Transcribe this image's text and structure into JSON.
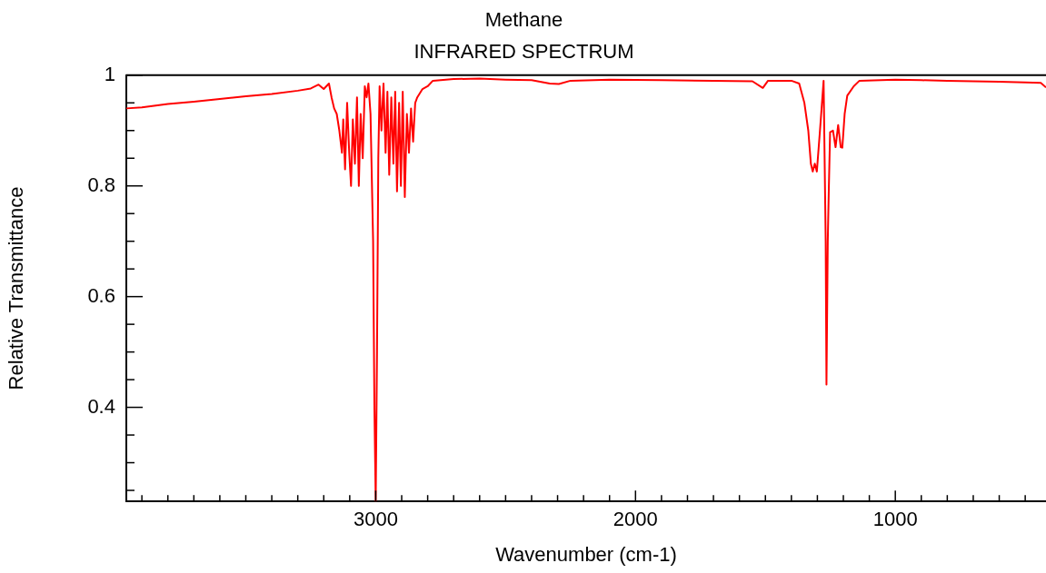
{
  "chart_data": {
    "type": "line",
    "title": "Methane",
    "subtitle": "INFRARED SPECTRUM",
    "xlabel": "Wavenumber (cm-1)",
    "ylabel": "Relative Transmittance",
    "xlim": [
      3960,
      420
    ],
    "ylim": [
      0.23,
      1
    ],
    "xticks": [
      {
        "value": 3900,
        "label": null
      },
      {
        "value": 3800,
        "label": null
      },
      {
        "value": 3700,
        "label": null
      },
      {
        "value": 3600,
        "label": null
      },
      {
        "value": 3500,
        "label": null
      },
      {
        "value": 3400,
        "label": null
      },
      {
        "value": 3300,
        "label": null
      },
      {
        "value": 3200,
        "label": null
      },
      {
        "value": 3100,
        "label": null
      },
      3000,
      {
        "value": 2900,
        "label": null
      },
      {
        "value": 2800,
        "label": null
      },
      {
        "value": 2700,
        "label": null
      },
      {
        "value": 2600,
        "label": null
      },
      {
        "value": 2500,
        "label": null
      },
      {
        "value": 2400,
        "label": null
      },
      {
        "value": 2300,
        "label": null
      },
      {
        "value": 2200,
        "label": null
      },
      {
        "value": 2100,
        "label": null
      },
      2000,
      {
        "value": 1900,
        "label": null
      },
      {
        "value": 1800,
        "label": null
      },
      {
        "value": 1700,
        "label": null
      },
      {
        "value": 1600,
        "label": null
      },
      {
        "value": 1500,
        "label": null
      },
      {
        "value": 1400,
        "label": null
      },
      {
        "value": 1300,
        "label": null
      },
      {
        "value": 1200,
        "label": null
      },
      {
        "value": 1100,
        "label": null
      },
      1000,
      {
        "value": 900,
        "label": null
      },
      {
        "value": 800,
        "label": null
      },
      {
        "value": 700,
        "label": null
      },
      {
        "value": 600,
        "label": null
      },
      {
        "value": 500,
        "label": null
      }
    ],
    "yticks": [
      {
        "value": 0.25,
        "label": null
      },
      {
        "value": 0.3,
        "label": null
      },
      {
        "value": 0.35,
        "label": null
      },
      0.4,
      {
        "value": 0.45,
        "label": null
      },
      {
        "value": 0.5,
        "label": null
      },
      {
        "value": 0.55,
        "label": null
      },
      0.6,
      {
        "value": 0.65,
        "label": null
      },
      {
        "value": 0.7,
        "label": null
      },
      {
        "value": 0.75,
        "label": null
      },
      0.8,
      {
        "value": 0.85,
        "label": null
      },
      {
        "value": 0.9,
        "label": null
      },
      {
        "value": 0.95,
        "label": null
      },
      1
    ],
    "grid": false,
    "legend": false,
    "marker": "none",
    "line_style": "solid",
    "series": [
      {
        "color": "#ff0000",
        "x": [
          3960,
          3900,
          3800,
          3700,
          3600,
          3500,
          3400,
          3300,
          3250,
          3220,
          3200,
          3180,
          3170,
          3160,
          3150,
          3140,
          3130,
          3125,
          3118,
          3110,
          3102,
          3095,
          3088,
          3080,
          3072,
          3065,
          3058,
          3050,
          3042,
          3035,
          3028,
          3020,
          3010,
          3005,
          3000,
          2995,
          2990,
          2985,
          2978,
          2970,
          2962,
          2955,
          2948,
          2940,
          2932,
          2925,
          2918,
          2910,
          2903,
          2896,
          2888,
          2880,
          2872,
          2864,
          2856,
          2848,
          2840,
          2820,
          2800,
          2780,
          2700,
          2600,
          2500,
          2400,
          2330,
          2295,
          2250,
          2100,
          1900,
          1700,
          1550,
          1510,
          1490,
          1400,
          1370,
          1350,
          1335,
          1325,
          1318,
          1310,
          1302,
          1290,
          1276,
          1268,
          1265,
          1260,
          1256,
          1251,
          1240,
          1230,
          1220,
          1210,
          1204,
          1195,
          1185,
          1160,
          1138,
          1000,
          900,
          800,
          700,
          600,
          500,
          440,
          420
        ],
        "values": [
          0.94,
          0.942,
          0.948,
          0.952,
          0.957,
          0.962,
          0.966,
          0.972,
          0.976,
          0.983,
          0.975,
          0.985,
          0.96,
          0.94,
          0.93,
          0.9,
          0.86,
          0.92,
          0.83,
          0.95,
          0.86,
          0.8,
          0.92,
          0.84,
          0.96,
          0.8,
          0.93,
          0.85,
          0.98,
          0.96,
          0.985,
          0.93,
          0.7,
          0.4,
          0.23,
          0.5,
          0.85,
          0.98,
          0.9,
          0.985,
          0.86,
          0.97,
          0.82,
          0.96,
          0.84,
          0.97,
          0.79,
          0.95,
          0.8,
          0.97,
          0.78,
          0.93,
          0.86,
          0.94,
          0.88,
          0.95,
          0.96,
          0.975,
          0.98,
          0.99,
          0.993,
          0.994,
          0.992,
          0.991,
          0.985,
          0.984,
          0.99,
          0.992,
          0.991,
          0.99,
          0.989,
          0.977,
          0.99,
          0.99,
          0.985,
          0.95,
          0.9,
          0.84,
          0.826,
          0.84,
          0.826,
          0.9,
          0.99,
          0.7,
          0.441,
          0.7,
          0.793,
          0.897,
          0.9,
          0.87,
          0.91,
          0.87,
          0.869,
          0.93,
          0.963,
          0.98,
          0.99,
          0.992,
          0.991,
          0.99,
          0.989,
          0.988,
          0.987,
          0.986,
          0.978
        ]
      }
    ]
  }
}
